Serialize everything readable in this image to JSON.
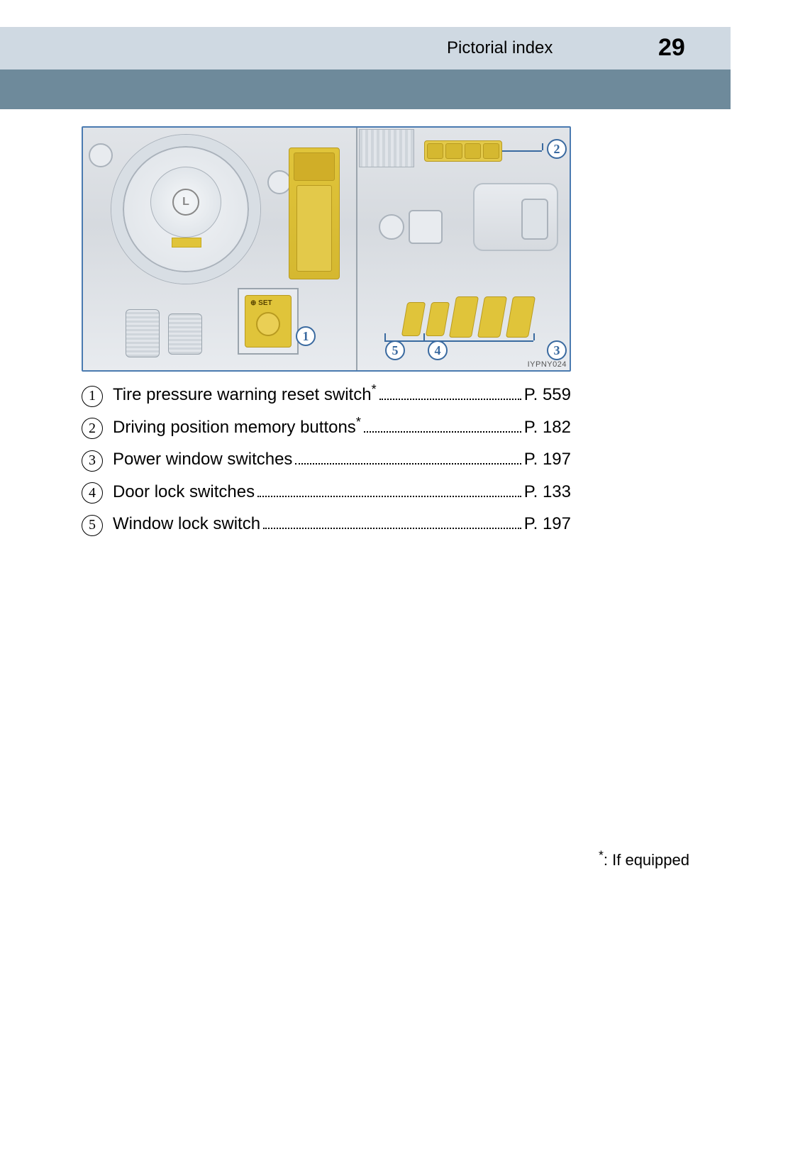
{
  "header": {
    "section_title": "Pictorial index",
    "page_number": "29",
    "header_band_color": "#cfd9e2",
    "sub_band_color": "#6e8a9b"
  },
  "illustration": {
    "code": "IYPNY024",
    "set_button_label": "⊕ SET",
    "highlight_color": "#e0c43a",
    "border_color": "#4a7ab0",
    "callouts": [
      {
        "n": "1"
      },
      {
        "n": "2"
      },
      {
        "n": "3"
      },
      {
        "n": "4"
      },
      {
        "n": "5"
      }
    ]
  },
  "index_items": [
    {
      "num": "1",
      "label": "Tire pressure warning reset switch",
      "star": true,
      "page": "P. 559"
    },
    {
      "num": "2",
      "label": "Driving position memory buttons",
      "star": true,
      "page": "P. 182"
    },
    {
      "num": "3",
      "label": "Power window switches",
      "star": false,
      "page": "P. 197"
    },
    {
      "num": "4",
      "label": "Door lock switches",
      "star": false,
      "page": "P. 133"
    },
    {
      "num": "5",
      "label": "Window lock switch",
      "star": false,
      "page": "P. 197"
    }
  ],
  "footnote": {
    "symbol": "*",
    "text": ": If equipped"
  }
}
